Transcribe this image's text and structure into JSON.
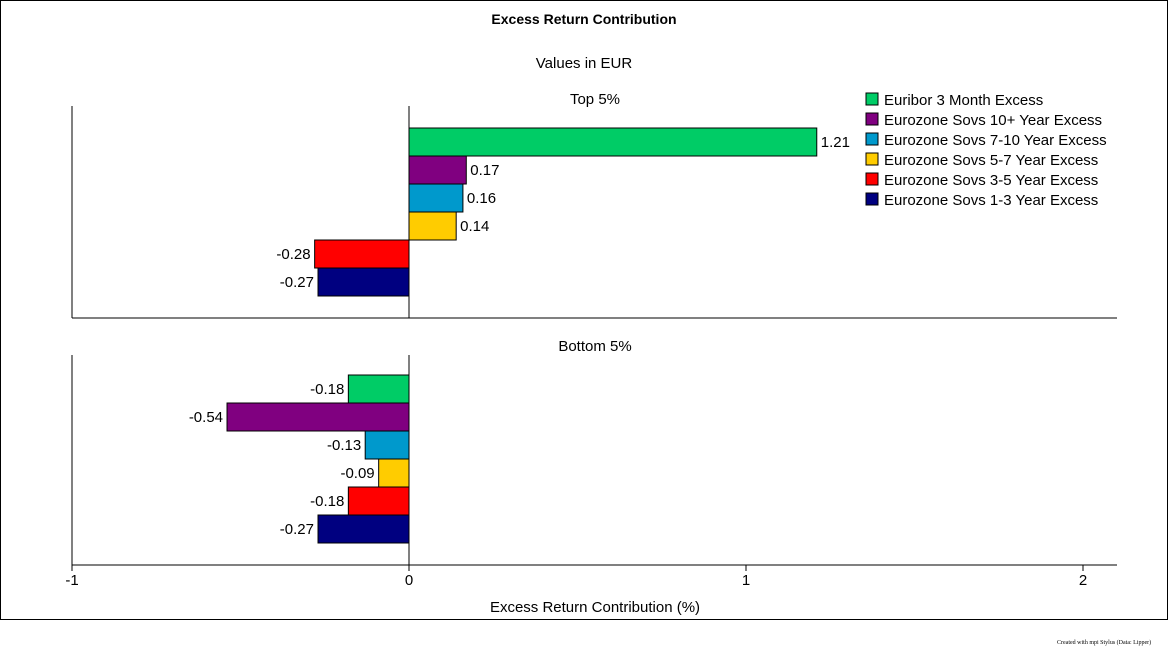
{
  "chart_data": {
    "type": "bar",
    "orientation": "horizontal",
    "title": "Excess Return Contribution",
    "subtitle": "Values in EUR",
    "xlabel": "Excess Return Contribution (%)",
    "xlim": [
      -1,
      2
    ],
    "xticks": [
      "-1",
      "0",
      "1",
      "2"
    ],
    "legend_position": "top-right",
    "series": [
      {
        "name": "Euribor 3 Month Excess",
        "color": "#00cc66"
      },
      {
        "name": "Eurozone Sovs 10+ Year Excess",
        "color": "#800080"
      },
      {
        "name": "Eurozone Sovs 7-10 Year Excess",
        "color": "#0099cc"
      },
      {
        "name": "Eurozone Sovs 5-7 Year Excess",
        "color": "#ffcc00"
      },
      {
        "name": "Eurozone Sovs 3-5 Year Excess",
        "color": "#ff0000"
      },
      {
        "name": "Eurozone Sovs 1-3 Year Excess",
        "color": "#000080"
      }
    ],
    "panels": [
      {
        "title": "Top 5%",
        "values": [
          1.21,
          0.17,
          0.16,
          0.14,
          -0.28,
          -0.27
        ],
        "labels": [
          "1.21",
          "0.17",
          "0.16",
          "0.14",
          "-0.28",
          "-0.27"
        ]
      },
      {
        "title": "Bottom 5%",
        "values": [
          -0.18,
          -0.54,
          -0.13,
          -0.09,
          -0.18,
          -0.27
        ],
        "labels": [
          "-0.18",
          "-0.54",
          "-0.13",
          "-0.09",
          "-0.18",
          "-0.27"
        ]
      }
    ]
  },
  "footer": {
    "credit": "Created with mpi Stylus (Data: Lipper)"
  }
}
